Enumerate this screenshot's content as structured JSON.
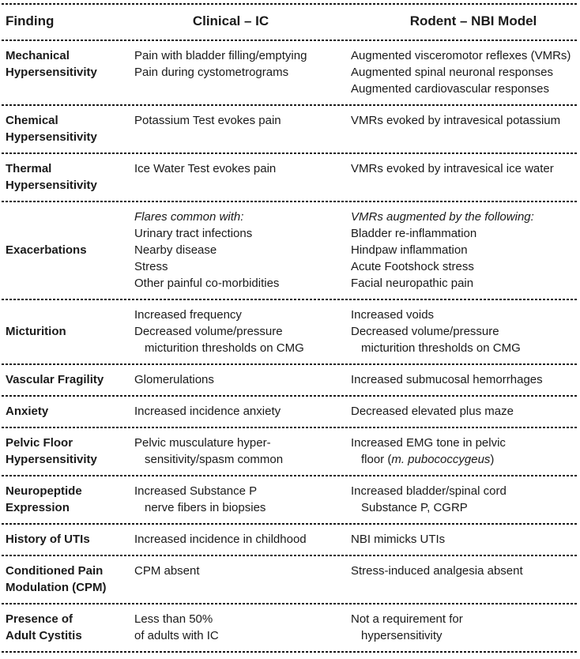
{
  "page": {
    "background": "#ffffff",
    "text_color": "#1a1a1a",
    "rule_color": "#1b1b1b"
  },
  "table": {
    "headers": [
      {
        "label": "Finding"
      },
      {
        "label": "Clinical – IC"
      },
      {
        "label": "Rodent – NBI Model"
      }
    ],
    "rows": [
      {
        "finding": [
          {
            "text": "Mechanical"
          },
          {
            "text": "Hypersensitivity"
          }
        ],
        "clinical": [
          {
            "text": "Pain with bladder filling/emptying"
          },
          {
            "text": "Pain during cystometrograms"
          }
        ],
        "rodent": [
          {
            "text": "Augmented visceromotor reflexes (VMRs)"
          },
          {
            "text": "Augmented spinal neuronal responses"
          },
          {
            "text": "Augmented cardiovascular responses"
          }
        ]
      },
      {
        "finding": [
          {
            "text": "Chemical"
          },
          {
            "text": "Hypersensitivity"
          }
        ],
        "clinical": [
          {
            "text": "Potassium Test evokes pain"
          }
        ],
        "rodent": [
          {
            "text": "VMRs evoked by intravesical potassium"
          }
        ]
      },
      {
        "finding": [
          {
            "text": "Thermal"
          },
          {
            "text": "Hypersensitivity"
          }
        ],
        "clinical": [
          {
            "text": "Ice Water Test evokes pain"
          }
        ],
        "rodent": [
          {
            "text": "VMRs evoked by intravesical ice water"
          }
        ]
      },
      {
        "finding": [
          {
            "text": "Exacerbations"
          }
        ],
        "finding_valign": "center",
        "clinical": [
          {
            "text": "Flares common with:",
            "italic": true
          },
          {
            "text": "Urinary tract infections"
          },
          {
            "text": "Nearby disease"
          },
          {
            "text": "Stress"
          },
          {
            "text": "Other painful co-morbidities"
          }
        ],
        "rodent": [
          {
            "text": "VMRs augmented by the following:",
            "italic": true
          },
          {
            "text": "Bladder re-inflammation"
          },
          {
            "text": "Hindpaw inflammation"
          },
          {
            "text": "Acute Footshock stress"
          },
          {
            "text": "Facial neuropathic pain"
          }
        ]
      },
      {
        "finding": [
          {
            "text": "Micturition"
          }
        ],
        "finding_valign": "center",
        "clinical": [
          {
            "text": "Increased frequency"
          },
          {
            "text": "Decreased volume/pressure"
          },
          {
            "text": "micturition thresholds on CMG",
            "indent": true
          }
        ],
        "rodent": [
          {
            "text": "Increased voids"
          },
          {
            "text": "Decreased volume/pressure"
          },
          {
            "text": "micturition thresholds on CMG",
            "indent": true
          }
        ]
      },
      {
        "finding": [
          {
            "text": "Vascular Fragility"
          }
        ],
        "clinical": [
          {
            "text": "Glomerulations"
          }
        ],
        "rodent": [
          {
            "text": "Increased submucosal hemorrhages"
          }
        ]
      },
      {
        "finding": [
          {
            "text": "Anxiety"
          }
        ],
        "clinical": [
          {
            "text": "Increased incidence anxiety"
          }
        ],
        "rodent": [
          {
            "text": "Decreased elevated plus maze"
          }
        ]
      },
      {
        "finding": [
          {
            "text": "Pelvic Floor"
          },
          {
            "text": "Hypersensitivity"
          }
        ],
        "clinical": [
          {
            "text": "Pelvic musculature hyper-"
          },
          {
            "text": "sensitivity/spasm common",
            "indent": true
          }
        ],
        "rodent": [
          {
            "text": "Increased EMG tone in pelvic"
          },
          {
            "indent": true,
            "segments": [
              {
                "text": "floor ("
              },
              {
                "text": "m. pubococcygeus",
                "italic": true
              },
              {
                "text": ")"
              }
            ]
          }
        ]
      },
      {
        "finding": [
          {
            "text": "Neuropeptide"
          },
          {
            "text": "Expression"
          }
        ],
        "clinical": [
          {
            "text": "Increased Substance P"
          },
          {
            "text": "nerve fibers in biopsies",
            "indent": true
          }
        ],
        "rodent": [
          {
            "text": "Increased bladder/spinal cord"
          },
          {
            "text": "Substance P, CGRP",
            "indent": true
          }
        ]
      },
      {
        "finding": [
          {
            "text": "History of UTIs"
          }
        ],
        "clinical": [
          {
            "text": "Increased incidence in childhood"
          }
        ],
        "rodent": [
          {
            "text": "NBI mimicks UTIs"
          }
        ]
      },
      {
        "finding": [
          {
            "text": "Conditioned Pain"
          },
          {
            "text": "Modulation (CPM)"
          }
        ],
        "clinical": [
          {
            "text": "CPM absent"
          }
        ],
        "rodent": [
          {
            "text": "Stress-induced analgesia absent"
          }
        ]
      },
      {
        "finding": [
          {
            "text": "Presence of"
          },
          {
            "text": "Adult Cystitis"
          }
        ],
        "clinical": [
          {
            "text": "Less than 50%"
          },
          {
            "text": "of adults with IC"
          }
        ],
        "rodent": [
          {
            "text": "Not a requirement for"
          },
          {
            "text": "hypersensitivity",
            "indent": true
          }
        ]
      }
    ]
  }
}
